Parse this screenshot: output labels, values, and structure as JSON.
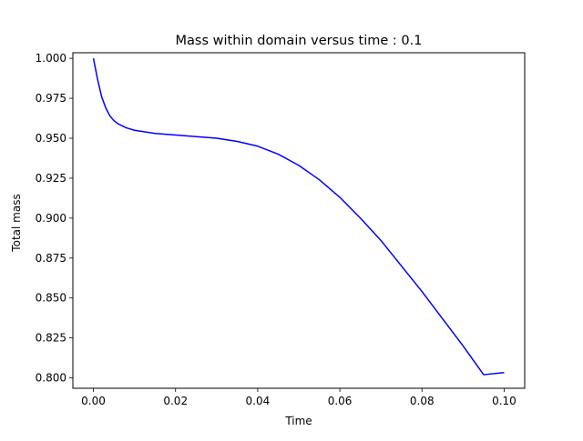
{
  "chart_data": {
    "type": "line",
    "title": "Mass within domain versus time : 0.1",
    "xlabel": "Time",
    "ylabel": "Total mass",
    "xlim": [
      -0.005,
      0.105
    ],
    "ylim": [
      0.7935,
      1.0035
    ],
    "x_ticks": [
      "0.00",
      "0.02",
      "0.04",
      "0.06",
      "0.08",
      "0.10"
    ],
    "y_ticks": [
      "0.800",
      "0.825",
      "0.850",
      "0.875",
      "0.900",
      "0.925",
      "0.950",
      "0.975",
      "1.000"
    ],
    "grid": false,
    "legend": "none",
    "series": [
      {
        "color": "#0000ff",
        "x": [
          0.0,
          0.001,
          0.002,
          0.003,
          0.004,
          0.005,
          0.006,
          0.008,
          0.01,
          0.015,
          0.02,
          0.025,
          0.03,
          0.035,
          0.04,
          0.045,
          0.05,
          0.055,
          0.06,
          0.065,
          0.07,
          0.075,
          0.08,
          0.085,
          0.09,
          0.095,
          0.1
        ],
        "y": [
          1.0,
          0.987,
          0.976,
          0.969,
          0.964,
          0.961,
          0.959,
          0.9565,
          0.955,
          0.953,
          0.952,
          0.951,
          0.95,
          0.948,
          0.945,
          0.94,
          0.933,
          0.924,
          0.913,
          0.9,
          0.886,
          0.87,
          0.854,
          0.837,
          0.82,
          0.802,
          0.8033
        ]
      }
    ]
  }
}
